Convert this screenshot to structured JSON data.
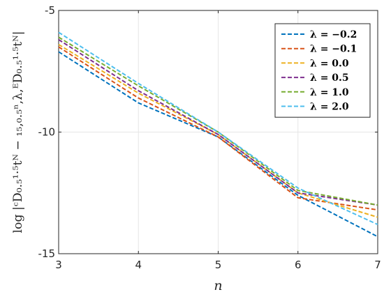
{
  "chart_data": {
    "type": "line",
    "title": "",
    "xlabel": "n",
    "ylabel": "log |ᶜD₀.₅¹·⁵tᴺ − ₁₅,₀.₅ⁿ,λ,ᴱD₀.₅¹·⁵tᴺ|",
    "xlim": [
      3,
      7
    ],
    "ylim": [
      -15,
      -5
    ],
    "xticks": [
      "3",
      "4",
      "5",
      "6",
      "7"
    ],
    "yticks": [
      "-5",
      "-10",
      "-15"
    ],
    "grid": true,
    "legend_position": "top-right",
    "x": [
      3,
      4,
      5,
      6,
      7
    ],
    "series": [
      {
        "name": "λ = −0.2",
        "color": "#0072BD",
        "values": [
          -6.7,
          -8.8,
          -10.2,
          -12.6,
          -14.3
        ]
      },
      {
        "name": "λ = −0.1",
        "color": "#D95319",
        "values": [
          -6.5,
          -8.6,
          -10.2,
          -12.7,
          -13.2
        ]
      },
      {
        "name": "λ = 0.0",
        "color": "#EDB120",
        "values": [
          -6.4,
          -8.4,
          -10.1,
          -12.5,
          -13.5
        ]
      },
      {
        "name": "λ = 0.5",
        "color": "#7E2F8E",
        "values": [
          -6.2,
          -8.3,
          -10.1,
          -12.5,
          -13.0
        ]
      },
      {
        "name": "λ = 1.0",
        "color": "#77AC30",
        "values": [
          -6.1,
          -8.1,
          -10.0,
          -12.4,
          -13.0
        ]
      },
      {
        "name": "λ = 2.0",
        "color": "#4DBEEE",
        "values": [
          -5.9,
          -8.0,
          -10.0,
          -12.3,
          -13.8
        ]
      }
    ]
  }
}
